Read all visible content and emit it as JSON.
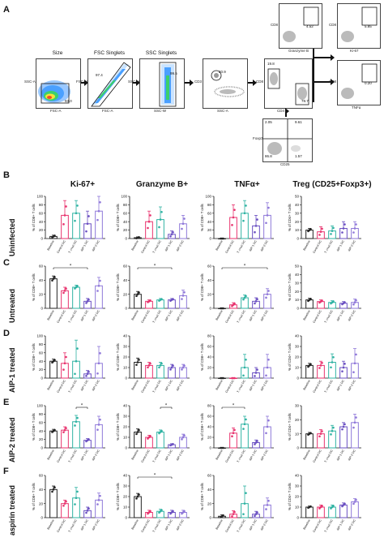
{
  "panel_letters": [
    "A",
    "B",
    "C",
    "D",
    "E",
    "F"
  ],
  "flow": {
    "gates": [
      {
        "label": "Size",
        "x_axis": "FSC-A",
        "y_axis": "SSC-A",
        "value": "93.0"
      },
      {
        "label": "FSC Singlets",
        "x_axis": "FSC-A",
        "y_axis": "FSC-H",
        "value": "97.4"
      },
      {
        "label": "SSC Singlets",
        "x_axis": "SSC-W",
        "y_axis": "SSC-H",
        "value": "99.5"
      },
      {
        "label": "",
        "x_axis": "SSC-A",
        "y_axis": "CD3",
        "value": "20.9"
      },
      {
        "label": "",
        "x_axis": "CD4",
        "y_axis": "CD8",
        "value": "19.8",
        "value2": "78.7"
      },
      {
        "label": "",
        "x_axis": "Granzyme B",
        "y_axis": "CD8",
        "value": "4.52"
      },
      {
        "label": "",
        "x_axis": "Ki-67",
        "y_axis": "CD8",
        "value": "5.85"
      },
      {
        "label": "",
        "x_axis": "TNFα",
        "y_axis": "CD8",
        "value": "0.20"
      },
      {
        "label": "",
        "x_axis": "CD25",
        "y_axis": "Foxp3",
        "value": "2.05",
        "value2": "9.61",
        "value3": "86.8",
        "value4": "1.57"
      }
    ]
  },
  "columns": [
    "Ki-67+",
    "Granzyme B+",
    "TNFα+",
    "Treg (CD25+Foxp3+)"
  ],
  "rows": [
    "Uninfected",
    "Untreated",
    "AIP-1 treated",
    "AIP-2 treated",
    "aspirin treated"
  ],
  "y_label": "% of CD8+ T cells",
  "y_label_treg": "% of CD4+ T cells",
  "categories": [
    "Baseline",
    "Control DC",
    "T. cruzi DC",
    "AIP-1 DC",
    "AIP-2 DC"
  ],
  "colors": [
    "#222222",
    "#e8336e",
    "#2fb3a3",
    "#6a4fc2",
    "#8f78d9"
  ],
  "chart_data": {
    "type": "bar",
    "categories": [
      "Baseline",
      "Control DC",
      "T. cruzi DC",
      "AIP-1 DC",
      "AIP-2 DC"
    ],
    "panels": [
      {
        "row": "Uninfected",
        "col": "Ki-67+",
        "ylim": [
          0,
          100
        ],
        "yticks": [
          0,
          20,
          40,
          60,
          80,
          100
        ],
        "values": [
          5,
          55,
          60,
          35,
          65
        ],
        "errors": [
          3,
          35,
          30,
          30,
          35
        ],
        "sig": []
      },
      {
        "row": "Uninfected",
        "col": "Granzyme B+",
        "ylim": [
          0,
          100
        ],
        "yticks": [
          0,
          20,
          40,
          60,
          80,
          100
        ],
        "values": [
          2,
          40,
          45,
          10,
          35
        ],
        "errors": [
          2,
          25,
          30,
          8,
          20
        ],
        "sig": []
      },
      {
        "row": "Uninfected",
        "col": "TNFα+",
        "ylim": [
          0,
          100
        ],
        "yticks": [
          0,
          20,
          40,
          60,
          80,
          100
        ],
        "values": [
          0,
          50,
          60,
          30,
          55
        ],
        "errors": [
          0,
          30,
          30,
          25,
          30
        ],
        "sig": []
      },
      {
        "row": "Uninfected",
        "col": "Treg (CD25+Foxp3+)",
        "ylim": [
          0,
          50
        ],
        "yticks": [
          0,
          10,
          20,
          30,
          40,
          50
        ],
        "values": [
          10,
          8,
          9,
          12,
          12
        ],
        "errors": [
          2,
          6,
          6,
          8,
          8
        ],
        "sig": []
      },
      {
        "row": "Untreated",
        "col": "Ki-67+",
        "ylim": [
          0,
          60
        ],
        "yticks": [
          0,
          20,
          40,
          60
        ],
        "values": [
          42,
          25,
          30,
          10,
          32
        ],
        "errors": [
          4,
          5,
          3,
          4,
          12
        ],
        "sig": [
          [
            0,
            3,
            "*"
          ]
        ]
      },
      {
        "row": "Untreated",
        "col": "Granzyme B+",
        "ylim": [
          0,
          60
        ],
        "yticks": [
          0,
          20,
          40,
          60
        ],
        "values": [
          20,
          10,
          12,
          12,
          18
        ],
        "errors": [
          4,
          2,
          2,
          2,
          8
        ],
        "sig": [
          [
            0,
            3,
            "*"
          ]
        ]
      },
      {
        "row": "Untreated",
        "col": "TNFα+",
        "ylim": [
          0,
          60
        ],
        "yticks": [
          0,
          20,
          40,
          60
        ],
        "values": [
          0,
          5,
          15,
          10,
          20
        ],
        "errors": [
          0,
          3,
          4,
          5,
          8
        ],
        "sig": [
          [
            0,
            4,
            "*"
          ]
        ]
      },
      {
        "row": "Untreated",
        "col": "Treg (CD25+Foxp3+)",
        "ylim": [
          0,
          50
        ],
        "yticks": [
          0,
          10,
          20,
          30,
          40,
          50
        ],
        "values": [
          10,
          8,
          7,
          6,
          7
        ],
        "errors": [
          2,
          2,
          2,
          2,
          4
        ],
        "sig": []
      },
      {
        "row": "AIP-1 treated",
        "col": "Ki-67+",
        "ylim": [
          0,
          100
        ],
        "yticks": [
          0,
          20,
          40,
          60,
          80,
          100
        ],
        "values": [
          40,
          35,
          40,
          10,
          35
        ],
        "errors": [
          5,
          25,
          50,
          8,
          40
        ],
        "sig": []
      },
      {
        "row": "AIP-1 treated",
        "col": "Granzyme B+",
        "ylim": [
          0,
          40
        ],
        "yticks": [
          0,
          10,
          20,
          30,
          40
        ],
        "values": [
          15,
          12,
          12,
          10,
          10
        ],
        "errors": [
          4,
          3,
          3,
          3,
          3
        ],
        "sig": []
      },
      {
        "row": "AIP-1 treated",
        "col": "TNFα+",
        "ylim": [
          0,
          80
        ],
        "yticks": [
          0,
          20,
          40,
          60,
          80
        ],
        "values": [
          0,
          0,
          20,
          10,
          20
        ],
        "errors": [
          0,
          0,
          25,
          10,
          25
        ],
        "sig": []
      },
      {
        "row": "AIP-1 treated",
        "col": "Treg (CD25+Foxp3+)",
        "ylim": [
          0,
          40
        ],
        "yticks": [
          0,
          10,
          20,
          30,
          40
        ],
        "values": [
          12,
          12,
          15,
          10,
          14
        ],
        "errors": [
          2,
          4,
          8,
          6,
          14
        ],
        "sig": []
      },
      {
        "row": "AIP-2 treated",
        "col": "Ki-67+",
        "ylim": [
          0,
          100
        ],
        "yticks": [
          0,
          20,
          40,
          60,
          80,
          100
        ],
        "values": [
          40,
          42,
          62,
          18,
          55
        ],
        "errors": [
          4,
          8,
          15,
          4,
          20
        ],
        "sig": [
          [
            2,
            3,
            "*"
          ]
        ]
      },
      {
        "row": "AIP-2 treated",
        "col": "Granzyme B+",
        "ylim": [
          0,
          40
        ],
        "yticks": [
          0,
          10,
          20,
          30,
          40
        ],
        "values": [
          15,
          10,
          15,
          3,
          10
        ],
        "errors": [
          3,
          2,
          2,
          1,
          3
        ],
        "sig": [
          [
            2,
            3,
            "*"
          ]
        ]
      },
      {
        "row": "AIP-2 treated",
        "col": "TNFα+",
        "ylim": [
          0,
          80
        ],
        "yticks": [
          0,
          20,
          40,
          60,
          80
        ],
        "values": [
          0,
          28,
          45,
          10,
          40
        ],
        "errors": [
          0,
          10,
          15,
          5,
          20
        ],
        "sig": [
          [
            0,
            2,
            "*"
          ]
        ]
      },
      {
        "row": "AIP-2 treated",
        "col": "Treg (CD25+Foxp3+)",
        "ylim": [
          0,
          30
        ],
        "yticks": [
          0,
          10,
          20,
          30
        ],
        "values": [
          10,
          10,
          12,
          15,
          18
        ],
        "errors": [
          1,
          3,
          4,
          3,
          6
        ],
        "sig": []
      },
      {
        "row": "aspirin treated",
        "col": "Ki-67+",
        "ylim": [
          0,
          60
        ],
        "yticks": [
          0,
          20,
          40,
          60
        ],
        "values": [
          40,
          20,
          28,
          10,
          25
        ],
        "errors": [
          5,
          5,
          15,
          5,
          10
        ],
        "sig": []
      },
      {
        "row": "aspirin treated",
        "col": "Granzyme B+",
        "ylim": [
          0,
          40
        ],
        "yticks": [
          0,
          10,
          20,
          30,
          40
        ],
        "values": [
          20,
          5,
          6,
          5,
          5
        ],
        "errors": [
          3,
          2,
          2,
          2,
          2
        ],
        "sig": [
          [
            0,
            3,
            "*"
          ]
        ]
      },
      {
        "row": "aspirin treated",
        "col": "TNFα+",
        "ylim": [
          0,
          60
        ],
        "yticks": [
          0,
          20,
          40,
          60
        ],
        "values": [
          2,
          5,
          20,
          5,
          18
        ],
        "errors": [
          2,
          5,
          25,
          4,
          10
        ],
        "sig": []
      },
      {
        "row": "aspirin treated",
        "col": "Treg (CD25+Foxp3+)",
        "ylim": [
          0,
          40
        ],
        "yticks": [
          0,
          10,
          20,
          30,
          40
        ],
        "values": [
          10,
          10,
          10,
          12,
          15
        ],
        "errors": [
          1,
          2,
          2,
          2,
          3
        ],
        "sig": []
      }
    ]
  }
}
